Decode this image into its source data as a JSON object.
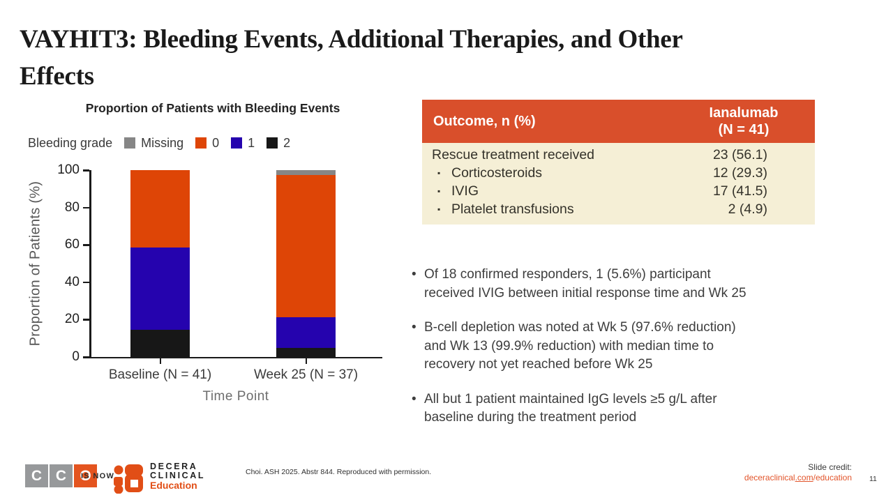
{
  "title_lines": [
    "VAYHIT3: Bleeding Events, Additional Therapies, and Other",
    "Effects"
  ],
  "chart_data": {
    "type": "bar",
    "stacked": true,
    "title": "Proportion of Patients with Bleeding Events",
    "legend_title": "Bleeding grade",
    "categories": [
      "Baseline (N = 41)",
      "Week 25 (N = 37)"
    ],
    "series": [
      {
        "name": "2",
        "color": "#171717",
        "values": [
          14.5,
          4.9
        ]
      },
      {
        "name": "1",
        "color": "#2503ae",
        "values": [
          44.0,
          16.4
        ]
      },
      {
        "name": "0",
        "color": "#de4506",
        "values": [
          41.5,
          76.0
        ]
      },
      {
        "name": "Missing",
        "color": "#868686",
        "values": [
          0,
          2.7
        ]
      }
    ],
    "legend_order": [
      "Missing",
      "0",
      "1",
      "2"
    ],
    "xlabel": "Time Point",
    "ylabel": "Proportion of Patients (%)",
    "ylim": [
      0,
      100
    ],
    "yticks": [
      0,
      20,
      40,
      60,
      80,
      100
    ],
    "grid": false,
    "legend_position": "top"
  },
  "table": {
    "header": {
      "col1": "Outcome, n (%)",
      "col2_line1": "Ianalumab",
      "col2_line2": "(N = 41)"
    },
    "header_bg": "#d94f2b",
    "body_bg": "#f5efd6",
    "body_text_color": "#34322a",
    "bullet_char": "▪",
    "rows": [
      {
        "label": "Rescue treatment received",
        "value": "23 (56.1)",
        "indent": false
      },
      {
        "label": "Corticosteroids",
        "value": "12 (29.3)",
        "indent": true
      },
      {
        "label": "IVIG",
        "value": "17 (41.5)",
        "indent": true
      },
      {
        "label": "Platelet transfusions",
        "value": "2 (4.9)",
        "indent": true
      }
    ]
  },
  "bullets": [
    {
      "lines": [
        "Of 18 confirmed responders, 1 (5.6%) participant",
        "received IVIG between initial response time and Wk 25"
      ]
    },
    {
      "lines": [
        "B-cell depletion was noted at Wk 5 (97.6% reduction)",
        "and Wk 13 (99.9% reduction) with median time to",
        "recovery not yet reached before Wk 25"
      ]
    },
    {
      "lines": [
        "All but 1 patient maintained IgG levels ≥5 g/L after",
        "baseline during the treatment period"
      ]
    }
  ],
  "footer": {
    "cco_letters": [
      "C",
      "C",
      "O"
    ],
    "cco_colors": [
      "#97999b",
      "#97999b",
      "#e4541f"
    ],
    "is_now": "IS NOW",
    "decera_line1": "DECERA",
    "decera_line2": "CLINICAL",
    "decera_line3": "Education",
    "citation": "Choi. ASH 2025. Abstr 844. Reproduced with permission.",
    "credit_label": "Slide credit:",
    "credit_link_pre": "deceraclinical",
    "credit_link_com": ".com",
    "credit_link_post": "/education",
    "page_number": "11"
  }
}
